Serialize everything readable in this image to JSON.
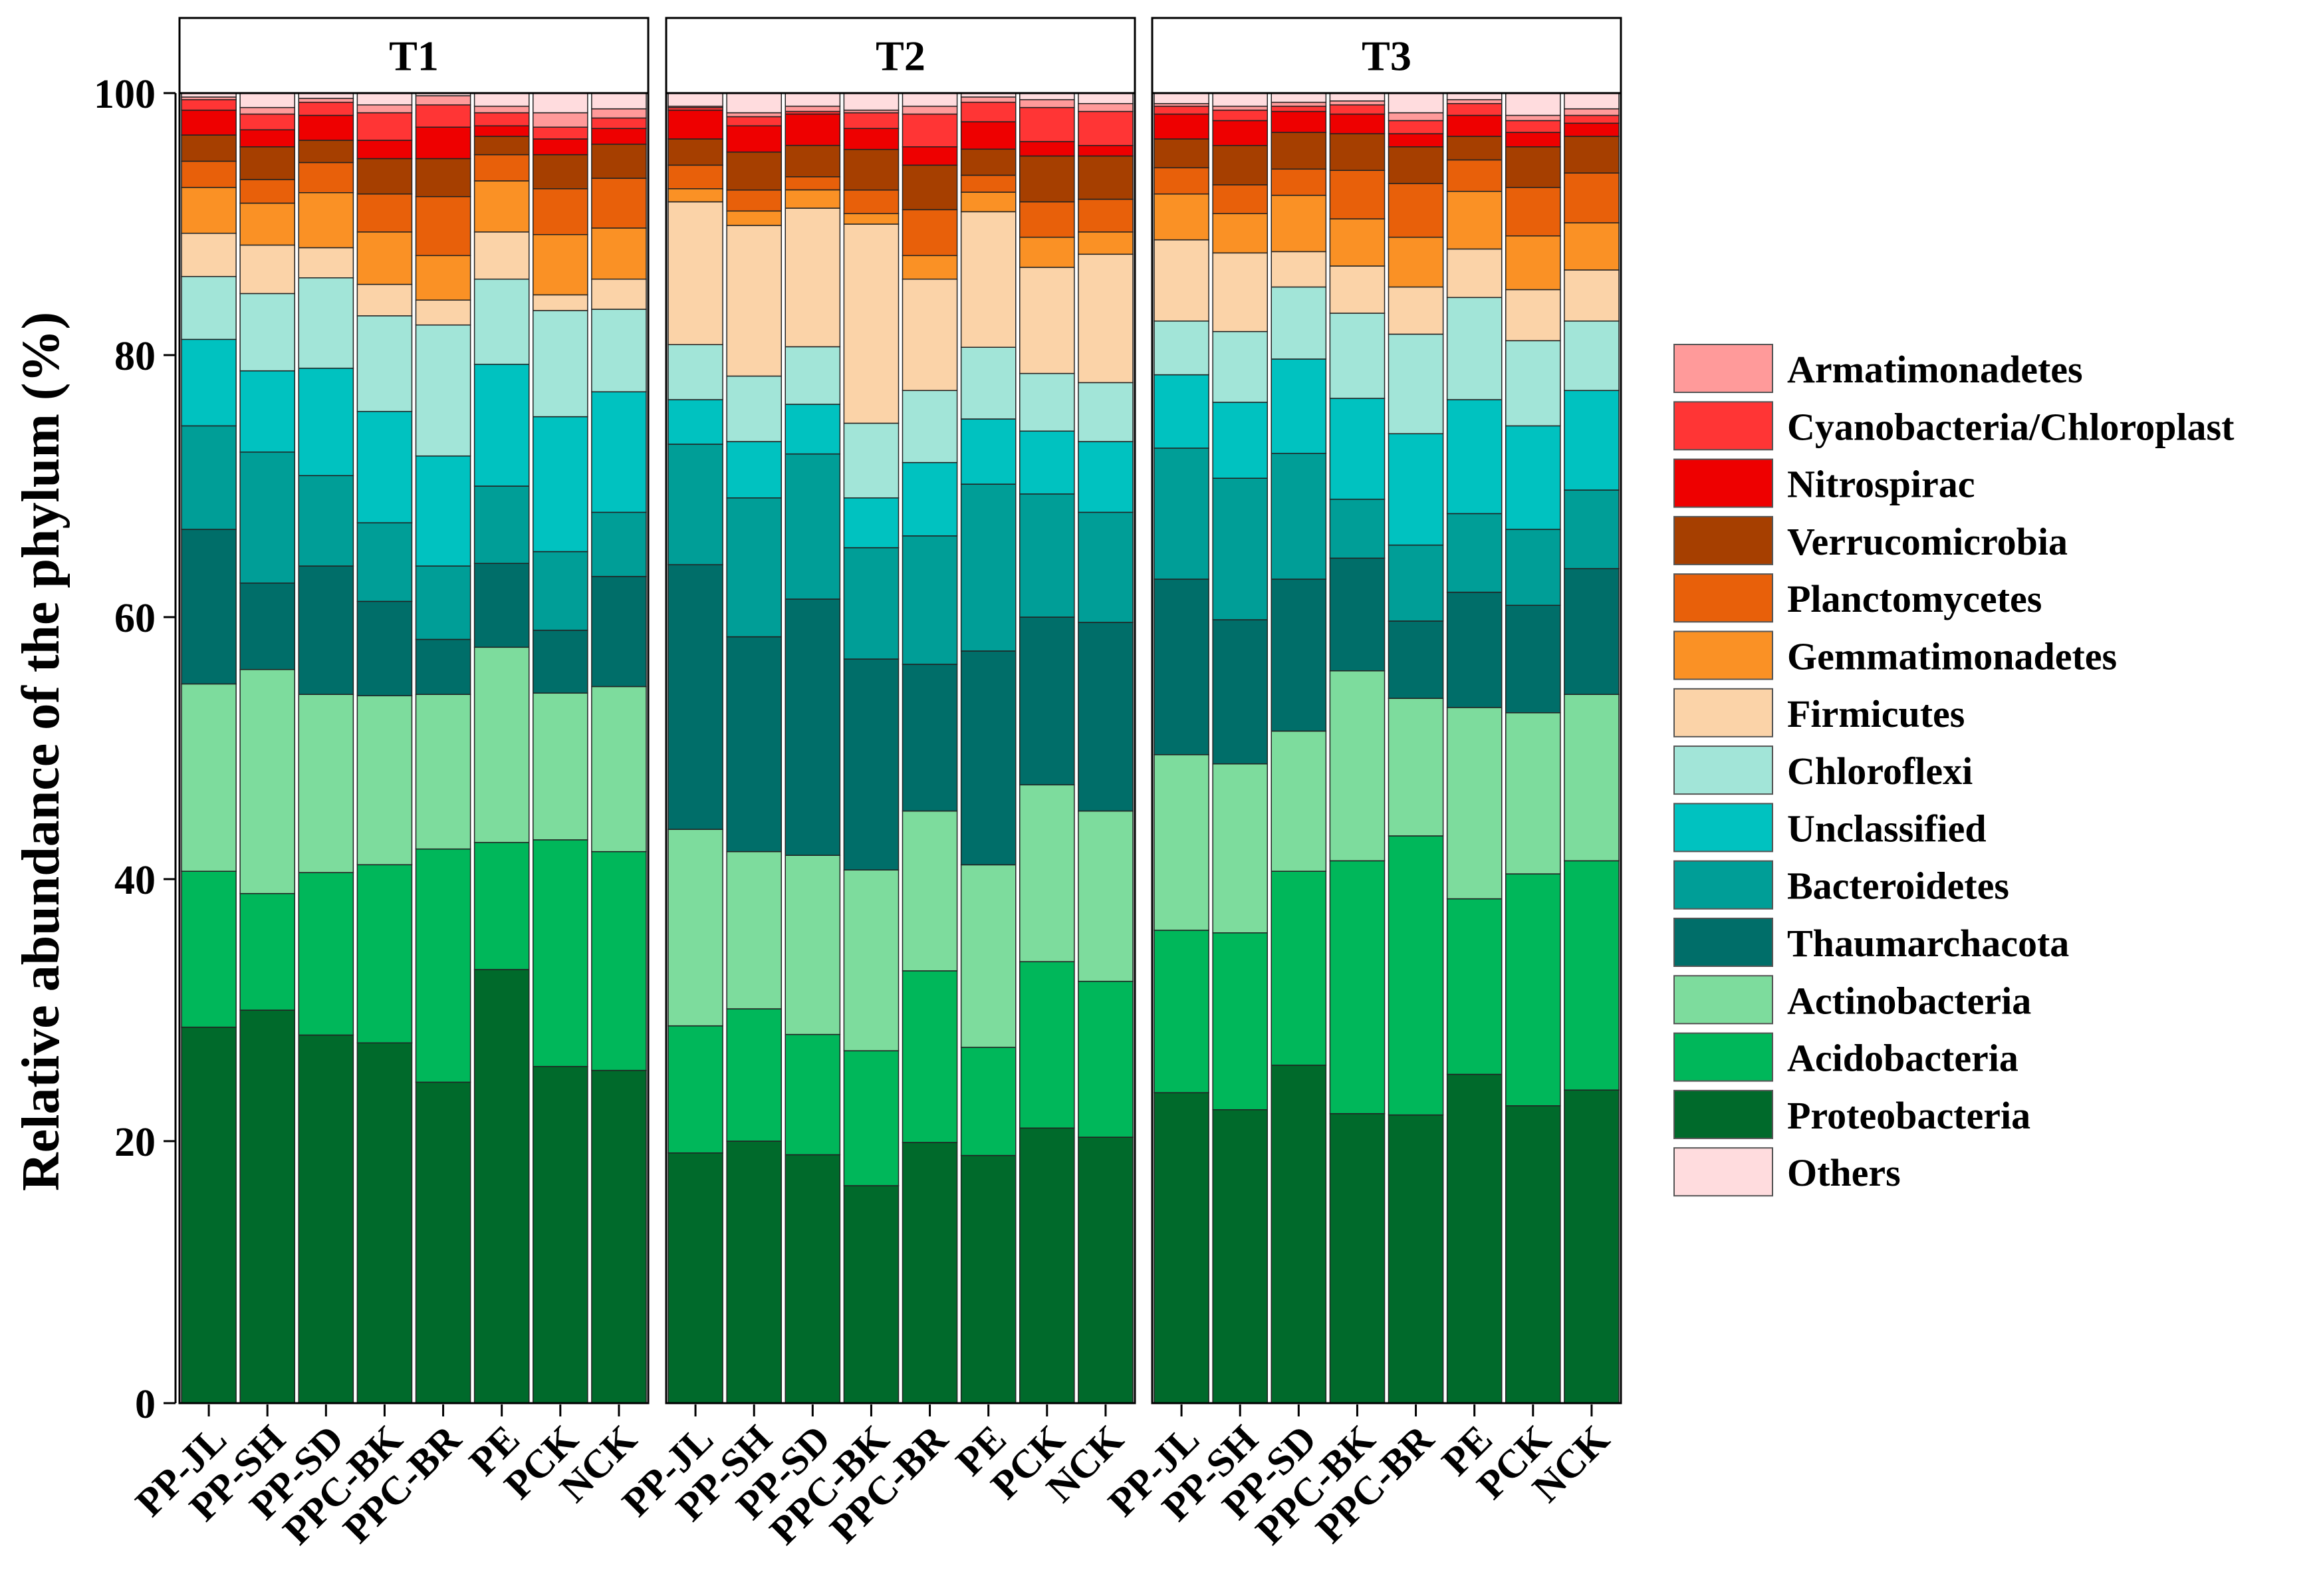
{
  "chart_data": {
    "type": "bar",
    "stacked": true,
    "ylabel": "Relative abundance of  the phylum (%)",
    "ylim": [
      0,
      100
    ],
    "yticks": [
      0,
      20,
      40,
      60,
      80,
      100
    ],
    "categories": [
      "PP-JL",
      "PP-SH",
      "PP-SD",
      "PPC-BK",
      "PPC-BR",
      "PE",
      "PCK",
      "NCK"
    ],
    "legend_position": "right",
    "stack_order": [
      "Proteobacteria",
      "Acidobacteria",
      "Actinobacteria",
      "Thaumarchacota",
      "Bacteroidetes",
      "Unclassified",
      "Chloroflexi",
      "Firmicutes",
      "Gemmatimonadetes",
      "Planctomycetes",
      "Verrucomicrobia",
      "Nitrospirac",
      "Cyanobacteria/Chloroplast",
      "Armatimonadetes",
      "Others"
    ],
    "legend": [
      {
        "name": "Armatimonadetes",
        "color": "#FF9A9A"
      },
      {
        "name": "Cyanobacteria/Chloroplast",
        "color": "#FF3535"
      },
      {
        "name": "Nitrospirac",
        "color": "#EE0000"
      },
      {
        "name": "Verrucomicrobia",
        "color": "#A63F00"
      },
      {
        "name": "Planctomycetes",
        "color": "#E8600A"
      },
      {
        "name": "Gemmatimonadetes",
        "color": "#FA9125"
      },
      {
        "name": "Firmicutes",
        "color": "#FBD3A8"
      },
      {
        "name": "Chloroflexi",
        "color": "#A2E5D8"
      },
      {
        "name": "Unclassified",
        "color": "#00C2C0"
      },
      {
        "name": "Bacteroidetes",
        "color": "#009E97"
      },
      {
        "name": "Thaumarchacota",
        "color": "#006E69"
      },
      {
        "name": "Actinobacteria",
        "color": "#7DDC9D"
      },
      {
        "name": "Acidobacteria",
        "color": "#00B75A"
      },
      {
        "name": "Proteobacteria",
        "color": "#006A2B"
      },
      {
        "name": "Others",
        "color": "#FFDCDE"
      }
    ],
    "panels": [
      {
        "title": "T1",
        "values": {
          "PP-JL": [
            28.7,
            11.9,
            14.3,
            11.8,
            7.9,
            6.6,
            4.8,
            3.3,
            3.5,
            2.0,
            2.0,
            1.9,
            0.8,
            0.2,
            0.3
          ],
          "PP-SH": [
            30.0,
            8.9,
            17.1,
            6.6,
            10.0,
            6.2,
            5.9,
            3.7,
            3.2,
            1.8,
            2.5,
            1.3,
            1.2,
            0.5,
            1.1
          ],
          "PP-SD": [
            28.1,
            12.4,
            13.6,
            9.8,
            6.9,
            8.2,
            6.9,
            2.3,
            4.2,
            2.3,
            1.7,
            1.9,
            1.0,
            0.3,
            0.4
          ],
          "PPC-BK": [
            27.5,
            13.6,
            12.9,
            7.2,
            6.0,
            8.5,
            7.3,
            2.4,
            4.0,
            2.9,
            2.7,
            1.4,
            2.1,
            0.6,
            0.9
          ],
          "PPC-BR": [
            24.5,
            17.8,
            11.8,
            4.2,
            5.6,
            8.4,
            10.0,
            1.9,
            3.4,
            4.5,
            2.9,
            2.4,
            1.7,
            0.7,
            0.2
          ],
          "PE": [
            33.1,
            9.7,
            14.9,
            6.4,
            5.9,
            9.3,
            6.5,
            3.6,
            3.9,
            2.0,
            1.4,
            0.8,
            1.0,
            0.5,
            1.0
          ],
          "PCK": [
            25.7,
            17.3,
            11.2,
            4.8,
            6.0,
            10.3,
            8.1,
            1.2,
            4.6,
            3.5,
            2.6,
            1.2,
            0.9,
            1.1,
            1.5
          ],
          "NCK": [
            25.4,
            16.7,
            12.6,
            8.4,
            4.9,
            9.2,
            6.3,
            2.3,
            3.9,
            3.8,
            2.6,
            1.2,
            0.8,
            0.7,
            1.2
          ]
        }
      },
      {
        "title": "T2",
        "values": {
          "PP-JL": [
            19.1,
            9.7,
            15.0,
            20.2,
            9.2,
            3.4,
            4.2,
            10.9,
            1.0,
            1.8,
            2.0,
            2.2,
            0.2,
            0.1,
            1.0
          ],
          "PP-SH": [
            20.0,
            10.1,
            12.0,
            16.4,
            10.6,
            4.3,
            5.0,
            11.5,
            1.1,
            1.6,
            2.9,
            2.0,
            0.7,
            0.3,
            1.5
          ],
          "PP-SD": [
            19.0,
            9.2,
            13.7,
            19.6,
            11.1,
            3.8,
            4.4,
            10.6,
            1.4,
            1.0,
            2.4,
            2.4,
            0.2,
            0.4,
            1.0
          ],
          "PPC-BK": [
            16.6,
            10.3,
            13.8,
            16.1,
            8.5,
            3.8,
            5.7,
            15.2,
            0.8,
            1.8,
            3.1,
            1.6,
            1.2,
            0.2,
            1.3
          ],
          "PPC-BR": [
            19.9,
            13.1,
            12.2,
            11.2,
            9.8,
            5.6,
            5.5,
            8.5,
            1.8,
            3.5,
            3.4,
            1.4,
            2.5,
            0.6,
            1.0
          ],
          "PE": [
            19.0,
            8.3,
            14.0,
            16.4,
            12.8,
            5.0,
            5.5,
            10.4,
            1.5,
            1.3,
            2.0,
            2.1,
            1.5,
            0.4,
            0.3
          ],
          "PCK": [
            21.0,
            12.7,
            13.5,
            12.8,
            9.4,
            4.8,
            4.4,
            8.1,
            2.3,
            2.7,
            3.5,
            1.1,
            2.6,
            0.6,
            0.5
          ],
          "NCK": [
            20.3,
            11.9,
            13.0,
            14.4,
            8.4,
            5.4,
            4.5,
            9.8,
            1.7,
            2.5,
            3.3,
            0.8,
            2.6,
            0.6,
            0.8
          ]
        }
      },
      {
        "title": "T3",
        "values": {
          "PP-JL": [
            23.7,
            12.4,
            13.4,
            13.4,
            10.0,
            5.6,
            4.1,
            6.2,
            3.5,
            2.0,
            2.2,
            1.9,
            0.6,
            0.2,
            0.8
          ],
          "PP-SH": [
            22.4,
            13.5,
            12.9,
            11.0,
            10.8,
            5.8,
            5.4,
            6.0,
            3.0,
            2.2,
            3.0,
            1.9,
            0.8,
            0.3,
            1.0
          ],
          "PP-SD": [
            25.8,
            14.8,
            10.7,
            11.6,
            9.6,
            7.2,
            5.5,
            2.7,
            4.3,
            2.0,
            2.8,
            1.6,
            0.4,
            0.3,
            0.7
          ],
          "PPC-BK": [
            22.1,
            19.3,
            14.5,
            8.6,
            4.5,
            7.7,
            6.5,
            3.6,
            3.6,
            3.7,
            2.8,
            1.5,
            0.7,
            0.3,
            0.6
          ],
          "PPC-BR": [
            22.0,
            21.3,
            10.5,
            5.9,
            5.8,
            8.5,
            7.6,
            3.6,
            3.8,
            4.1,
            2.8,
            1.0,
            1.0,
            0.6,
            1.5
          ],
          "PE": [
            25.1,
            13.4,
            14.6,
            8.8,
            6.0,
            8.7,
            7.8,
            3.7,
            4.4,
            2.4,
            1.8,
            1.6,
            0.9,
            0.3,
            0.5
          ],
          "PCK": [
            22.7,
            17.7,
            12.3,
            8.2,
            5.8,
            7.9,
            6.5,
            3.9,
            4.1,
            3.7,
            3.1,
            1.1,
            0.9,
            0.4,
            1.7
          ],
          "NCK": [
            23.9,
            17.5,
            12.7,
            9.6,
            6.0,
            7.6,
            5.3,
            3.9,
            3.6,
            3.8,
            2.8,
            1.0,
            0.6,
            0.5,
            1.2
          ]
        }
      }
    ]
  }
}
